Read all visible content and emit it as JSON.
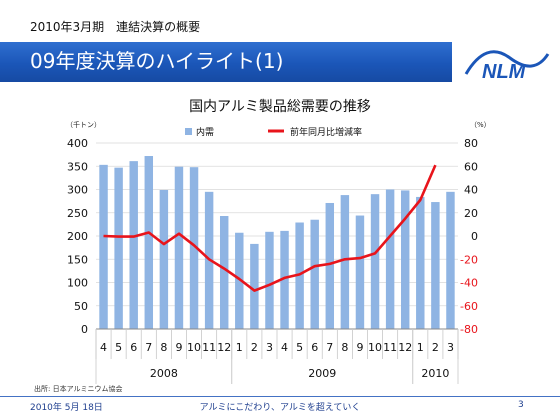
{
  "header": {
    "subtitle": "2010年3月期　連結決算の概要",
    "title": "09年度決算のハイライト(1)",
    "logo_text": "NLM"
  },
  "footer": {
    "date": "2010年 5月 18日",
    "slogan": "アルミにこだわり、アルミを超えていく",
    "page": "3"
  },
  "colors": {
    "bar": "#8fb4e3",
    "line": "#e8141b",
    "header_blue": "#1b56b8"
  },
  "chart_data": {
    "type": "bar+line",
    "title": "国内アルミ製品総需要の推移",
    "source": "出所: 日本アルミニウム協会",
    "left_unit": "（千トン）",
    "right_unit": "（%）",
    "categories": [
      "4",
      "5",
      "6",
      "7",
      "8",
      "9",
      "10",
      "11",
      "12",
      "1",
      "2",
      "3",
      "4",
      "5",
      "6",
      "7",
      "8",
      "9",
      "10",
      "11",
      "12",
      "1",
      "2",
      "3"
    ],
    "year_groups": [
      {
        "label": "2008",
        "start": 0,
        "end": 8
      },
      {
        "label": "2009",
        "start": 9,
        "end": 20
      },
      {
        "label": "2010",
        "start": 21,
        "end": 23
      }
    ],
    "series": [
      {
        "name": "内需",
        "type": "bar",
        "axis": "left",
        "values": [
          353,
          347,
          361,
          372,
          299,
          349,
          348,
          295,
          243,
          207,
          183,
          209,
          211,
          229,
          235,
          271,
          288,
          244,
          290,
          300,
          298,
          284,
          273,
          295
        ]
      },
      {
        "name": "前年同月比増減率",
        "type": "line",
        "axis": "right",
        "values": [
          0,
          -0.5,
          -0.5,
          3,
          -7,
          2,
          -8,
          -20,
          -28,
          -37,
          -47,
          -42,
          -36,
          -33,
          -26,
          -24,
          -20,
          -19,
          -15,
          0,
          15,
          31,
          61,
          null
        ]
      }
    ],
    "left_ticks": [
      "0",
      "50",
      "100",
      "150",
      "200",
      "250",
      "300",
      "350",
      "400"
    ],
    "right_ticks": [
      "-80",
      "-60",
      "-40",
      "-20",
      "0",
      "20",
      "40",
      "60",
      "80"
    ],
    "ylim_left": [
      0,
      400
    ],
    "ylim_right": [
      -80,
      80
    ],
    "legend_position": "top"
  }
}
